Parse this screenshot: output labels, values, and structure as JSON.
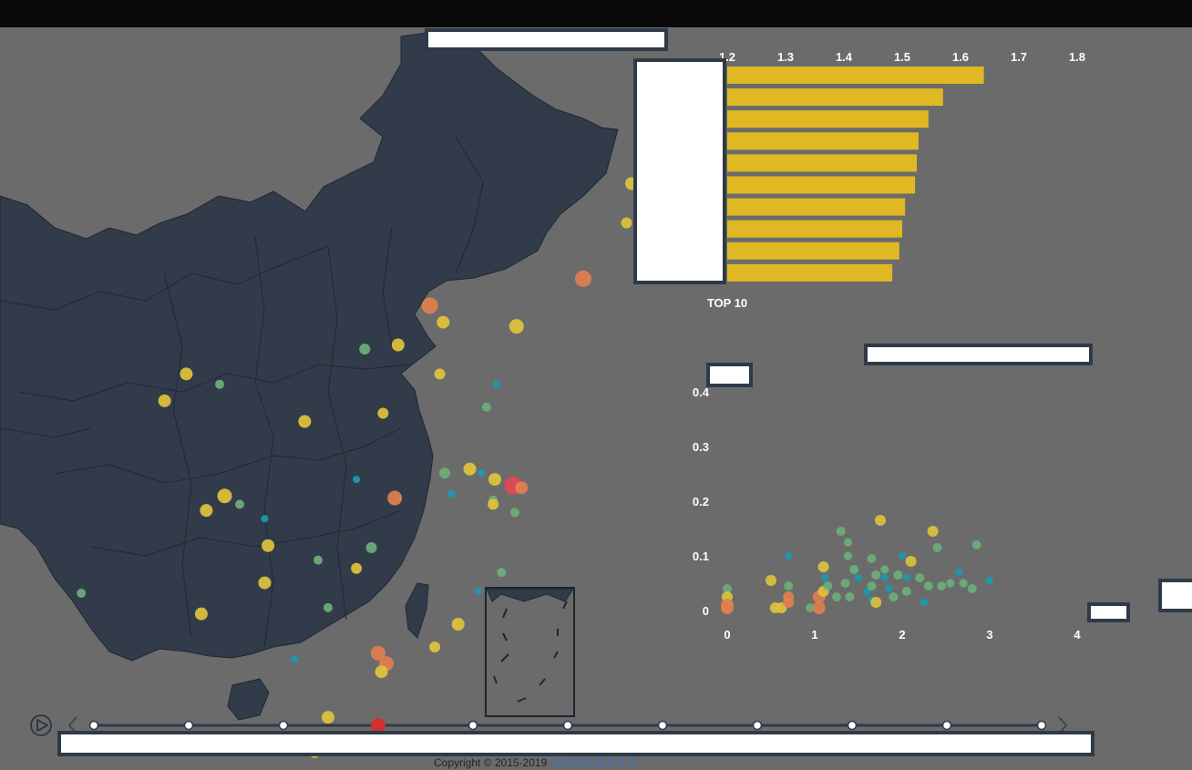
{
  "page": {
    "copyright_text": "Copyright © 2015-2019",
    "copyright_link": "北京航空航天大学"
  },
  "colors": {
    "background": "#6b6b6b",
    "map_fill": "#323b4a",
    "bar": "#dfb824",
    "yellow": "#dfc43c",
    "orange": "#e08050",
    "green": "#6cb07a",
    "teal": "#1a9bb0",
    "red": "#e04858",
    "timeline_active": "#d03030"
  },
  "timeline": {
    "play_icon": "play-icon",
    "prev_icon": "chevron-left-icon",
    "next_icon": "chevron-right-icon",
    "point_count": 11,
    "active_index": 3
  },
  "map_points": [
    {
      "lon": 128.5,
      "lat": 45.8,
      "v": 2,
      "color": "yellow"
    },
    {
      "lon": 128.2,
      "lat": 43.9,
      "v": 1.5,
      "color": "yellow"
    },
    {
      "lon": 125.6,
      "lat": 41.2,
      "v": 3,
      "color": "orange"
    },
    {
      "lon": 116.4,
      "lat": 39.9,
      "v": 3,
      "color": "orange"
    },
    {
      "lon": 117.2,
      "lat": 39.1,
      "v": 2,
      "color": "yellow"
    },
    {
      "lon": 121.6,
      "lat": 38.9,
      "v": 2.5,
      "color": "yellow"
    },
    {
      "lon": 114.5,
      "lat": 38.0,
      "v": 2,
      "color": "yellow"
    },
    {
      "lon": 112.5,
      "lat": 37.8,
      "v": 1.5,
      "color": "green"
    },
    {
      "lon": 103.8,
      "lat": 36.1,
      "v": 1,
      "color": "green"
    },
    {
      "lon": 101.8,
      "lat": 36.6,
      "v": 2,
      "color": "yellow"
    },
    {
      "lon": 120.4,
      "lat": 36.1,
      "v": 0.5,
      "color": "teal"
    },
    {
      "lon": 117.0,
      "lat": 36.6,
      "v": 1.5,
      "color": "yellow"
    },
    {
      "lon": 119.8,
      "lat": 35.0,
      "v": 1,
      "color": "green"
    },
    {
      "lon": 100.5,
      "lat": 35.3,
      "v": 2,
      "color": "yellow"
    },
    {
      "lon": 108.9,
      "lat": 34.3,
      "v": 2,
      "color": "yellow"
    },
    {
      "lon": 113.6,
      "lat": 34.7,
      "v": 1.5,
      "color": "yellow"
    },
    {
      "lon": 112.0,
      "lat": 31.5,
      "v": 0.5,
      "color": "teal"
    },
    {
      "lon": 117.3,
      "lat": 31.8,
      "v": 1.5,
      "color": "green"
    },
    {
      "lon": 118.8,
      "lat": 32.0,
      "v": 2,
      "color": "yellow"
    },
    {
      "lon": 120.3,
      "lat": 31.5,
      "v": 2,
      "color": "yellow"
    },
    {
      "lon": 119.5,
      "lat": 31.8,
      "v": 0.5,
      "color": "teal"
    },
    {
      "lon": 121.4,
      "lat": 31.2,
      "v": 3.5,
      "color": "red"
    },
    {
      "lon": 121.9,
      "lat": 31.1,
      "v": 2,
      "color": "orange"
    },
    {
      "lon": 120.2,
      "lat": 30.5,
      "v": 1,
      "color": "green"
    },
    {
      "lon": 114.3,
      "lat": 30.6,
      "v": 2.5,
      "color": "orange"
    },
    {
      "lon": 117.7,
      "lat": 30.8,
      "v": 0.5,
      "color": "teal"
    },
    {
      "lon": 120.2,
      "lat": 30.3,
      "v": 1.5,
      "color": "yellow"
    },
    {
      "lon": 121.5,
      "lat": 29.9,
      "v": 1,
      "color": "green"
    },
    {
      "lon": 104.1,
      "lat": 30.7,
      "v": 2.5,
      "color": "yellow"
    },
    {
      "lon": 103.0,
      "lat": 30.0,
      "v": 2,
      "color": "yellow"
    },
    {
      "lon": 105.0,
      "lat": 30.3,
      "v": 1,
      "color": "green"
    },
    {
      "lon": 106.5,
      "lat": 29.6,
      "v": 0.5,
      "color": "teal"
    },
    {
      "lon": 106.7,
      "lat": 28.3,
      "v": 2,
      "color": "yellow"
    },
    {
      "lon": 109.7,
      "lat": 27.6,
      "v": 1,
      "color": "green"
    },
    {
      "lon": 112.9,
      "lat": 28.2,
      "v": 1.5,
      "color": "green"
    },
    {
      "lon": 112.0,
      "lat": 27.2,
      "v": 1.5,
      "color": "yellow"
    },
    {
      "lon": 120.7,
      "lat": 27.0,
      "v": 1,
      "color": "green"
    },
    {
      "lon": 95.5,
      "lat": 26.0,
      "v": 1,
      "color": "green"
    },
    {
      "lon": 106.5,
      "lat": 26.5,
      "v": 2,
      "color": "yellow"
    },
    {
      "lon": 110.3,
      "lat": 25.3,
      "v": 1,
      "color": "green"
    },
    {
      "lon": 119.3,
      "lat": 26.1,
      "v": 0.5,
      "color": "teal"
    },
    {
      "lon": 102.7,
      "lat": 25.0,
      "v": 2,
      "color": "yellow"
    },
    {
      "lon": 118.1,
      "lat": 24.5,
      "v": 2,
      "color": "yellow"
    },
    {
      "lon": 116.7,
      "lat": 23.4,
      "v": 1.5,
      "color": "yellow"
    },
    {
      "lon": 113.3,
      "lat": 23.1,
      "v": 2.5,
      "color": "orange"
    },
    {
      "lon": 113.8,
      "lat": 22.6,
      "v": 2.5,
      "color": "orange"
    },
    {
      "lon": 113.5,
      "lat": 22.2,
      "v": 2,
      "color": "yellow"
    },
    {
      "lon": 108.3,
      "lat": 22.8,
      "v": 0.5,
      "color": "teal"
    },
    {
      "lon": 110.3,
      "lat": 20.0,
      "v": 2,
      "color": "yellow"
    },
    {
      "lon": 109.5,
      "lat": 18.3,
      "v": 1.5,
      "color": "yellow"
    }
  ],
  "chart_data": [
    {
      "type": "bar",
      "orientation": "horizontal",
      "categories": [
        "",
        "",
        "",
        "",
        "",
        "",
        "",
        "",
        "",
        ""
      ],
      "values": [
        1.64,
        1.57,
        1.545,
        1.528,
        1.525,
        1.522,
        1.505,
        1.5,
        1.495,
        1.483
      ],
      "xlim": [
        1.2,
        1.8
      ],
      "xticks": [
        "1.2",
        "1.3",
        "1.4",
        "1.5",
        "1.6",
        "1.7",
        "1.8"
      ],
      "xlabel": "TOP 10"
    },
    {
      "type": "scatter",
      "xlim": [
        0,
        4
      ],
      "ylim": [
        0,
        0.4
      ],
      "xticks": [
        "0",
        "1",
        "2",
        "3",
        "4"
      ],
      "yticks": [
        "0",
        "0.1",
        "0.2",
        "0.3",
        "0.4"
      ],
      "points": [
        {
          "x": 0.0,
          "y": 0.04,
          "v": 1,
          "color": "green"
        },
        {
          "x": 0.0,
          "y": 0.025,
          "v": 1.5,
          "color": "yellow"
        },
        {
          "x": 0.0,
          "y": 0.01,
          "v": 2,
          "color": "orange"
        },
        {
          "x": 0.0,
          "y": 0.005,
          "v": 2,
          "color": "orange"
        },
        {
          "x": 0.5,
          "y": 0.055,
          "v": 1.5,
          "color": "yellow"
        },
        {
          "x": 0.55,
          "y": 0.005,
          "v": 1.5,
          "color": "yellow"
        },
        {
          "x": 0.62,
          "y": 0.005,
          "v": 1.5,
          "color": "yellow"
        },
        {
          "x": 0.7,
          "y": 0.045,
          "v": 1,
          "color": "green"
        },
        {
          "x": 0.7,
          "y": 0.025,
          "v": 1.5,
          "color": "orange"
        },
        {
          "x": 0.7,
          "y": 0.015,
          "v": 1.5,
          "color": "orange"
        },
        {
          "x": 0.7,
          "y": 0.1,
          "v": 0.5,
          "color": "teal"
        },
        {
          "x": 0.95,
          "y": 0.005,
          "v": 1,
          "color": "green"
        },
        {
          "x": 1.05,
          "y": 0.025,
          "v": 2,
          "color": "orange"
        },
        {
          "x": 1.05,
          "y": 0.005,
          "v": 2,
          "color": "orange"
        },
        {
          "x": 1.1,
          "y": 0.08,
          "v": 1.5,
          "color": "yellow"
        },
        {
          "x": 1.1,
          "y": 0.035,
          "v": 1.5,
          "color": "yellow"
        },
        {
          "x": 1.12,
          "y": 0.06,
          "v": 0.5,
          "color": "teal"
        },
        {
          "x": 1.15,
          "y": 0.045,
          "v": 1,
          "color": "green"
        },
        {
          "x": 1.25,
          "y": 0.025,
          "v": 1,
          "color": "green"
        },
        {
          "x": 1.3,
          "y": 0.145,
          "v": 1,
          "color": "green"
        },
        {
          "x": 1.35,
          "y": 0.05,
          "v": 1,
          "color": "green"
        },
        {
          "x": 1.38,
          "y": 0.125,
          "v": 0.8,
          "color": "green"
        },
        {
          "x": 1.38,
          "y": 0.1,
          "v": 0.8,
          "color": "green"
        },
        {
          "x": 1.4,
          "y": 0.025,
          "v": 1,
          "color": "green"
        },
        {
          "x": 1.45,
          "y": 0.075,
          "v": 1,
          "color": "green"
        },
        {
          "x": 1.5,
          "y": 0.06,
          "v": 0.5,
          "color": "teal"
        },
        {
          "x": 1.6,
          "y": 0.035,
          "v": 0.5,
          "color": "teal"
        },
        {
          "x": 1.65,
          "y": 0.095,
          "v": 1,
          "color": "green"
        },
        {
          "x": 1.65,
          "y": 0.045,
          "v": 1,
          "color": "green"
        },
        {
          "x": 1.65,
          "y": 0.02,
          "v": 0.5,
          "color": "teal"
        },
        {
          "x": 1.7,
          "y": 0.065,
          "v": 1,
          "color": "green"
        },
        {
          "x": 1.7,
          "y": 0.015,
          "v": 1.5,
          "color": "yellow"
        },
        {
          "x": 1.75,
          "y": 0.165,
          "v": 1.5,
          "color": "yellow"
        },
        {
          "x": 1.8,
          "y": 0.06,
          "v": 0.5,
          "color": "teal"
        },
        {
          "x": 1.8,
          "y": 0.075,
          "v": 0.8,
          "color": "green"
        },
        {
          "x": 1.85,
          "y": 0.04,
          "v": 0.5,
          "color": "teal"
        },
        {
          "x": 1.9,
          "y": 0.025,
          "v": 1,
          "color": "green"
        },
        {
          "x": 1.95,
          "y": 0.065,
          "v": 1,
          "color": "green"
        },
        {
          "x": 2.0,
          "y": 0.1,
          "v": 0.5,
          "color": "teal"
        },
        {
          "x": 2.05,
          "y": 0.06,
          "v": 0.5,
          "color": "teal"
        },
        {
          "x": 2.05,
          "y": 0.035,
          "v": 1,
          "color": "green"
        },
        {
          "x": 2.1,
          "y": 0.09,
          "v": 1.5,
          "color": "yellow"
        },
        {
          "x": 2.2,
          "y": 0.06,
          "v": 1,
          "color": "green"
        },
        {
          "x": 2.25,
          "y": 0.015,
          "v": 0.5,
          "color": "teal"
        },
        {
          "x": 2.3,
          "y": 0.045,
          "v": 1,
          "color": "green"
        },
        {
          "x": 2.35,
          "y": 0.145,
          "v": 1.5,
          "color": "yellow"
        },
        {
          "x": 2.4,
          "y": 0.115,
          "v": 1,
          "color": "green"
        },
        {
          "x": 2.45,
          "y": 0.045,
          "v": 1,
          "color": "green"
        },
        {
          "x": 2.55,
          "y": 0.05,
          "v": 0.8,
          "color": "green"
        },
        {
          "x": 2.65,
          "y": 0.07,
          "v": 0.5,
          "color": "teal"
        },
        {
          "x": 2.7,
          "y": 0.05,
          "v": 0.8,
          "color": "green"
        },
        {
          "x": 2.8,
          "y": 0.04,
          "v": 1,
          "color": "green"
        },
        {
          "x": 2.85,
          "y": 0.12,
          "v": 1,
          "color": "green"
        },
        {
          "x": 3.0,
          "y": 0.055,
          "v": 0.5,
          "color": "teal"
        }
      ]
    }
  ]
}
